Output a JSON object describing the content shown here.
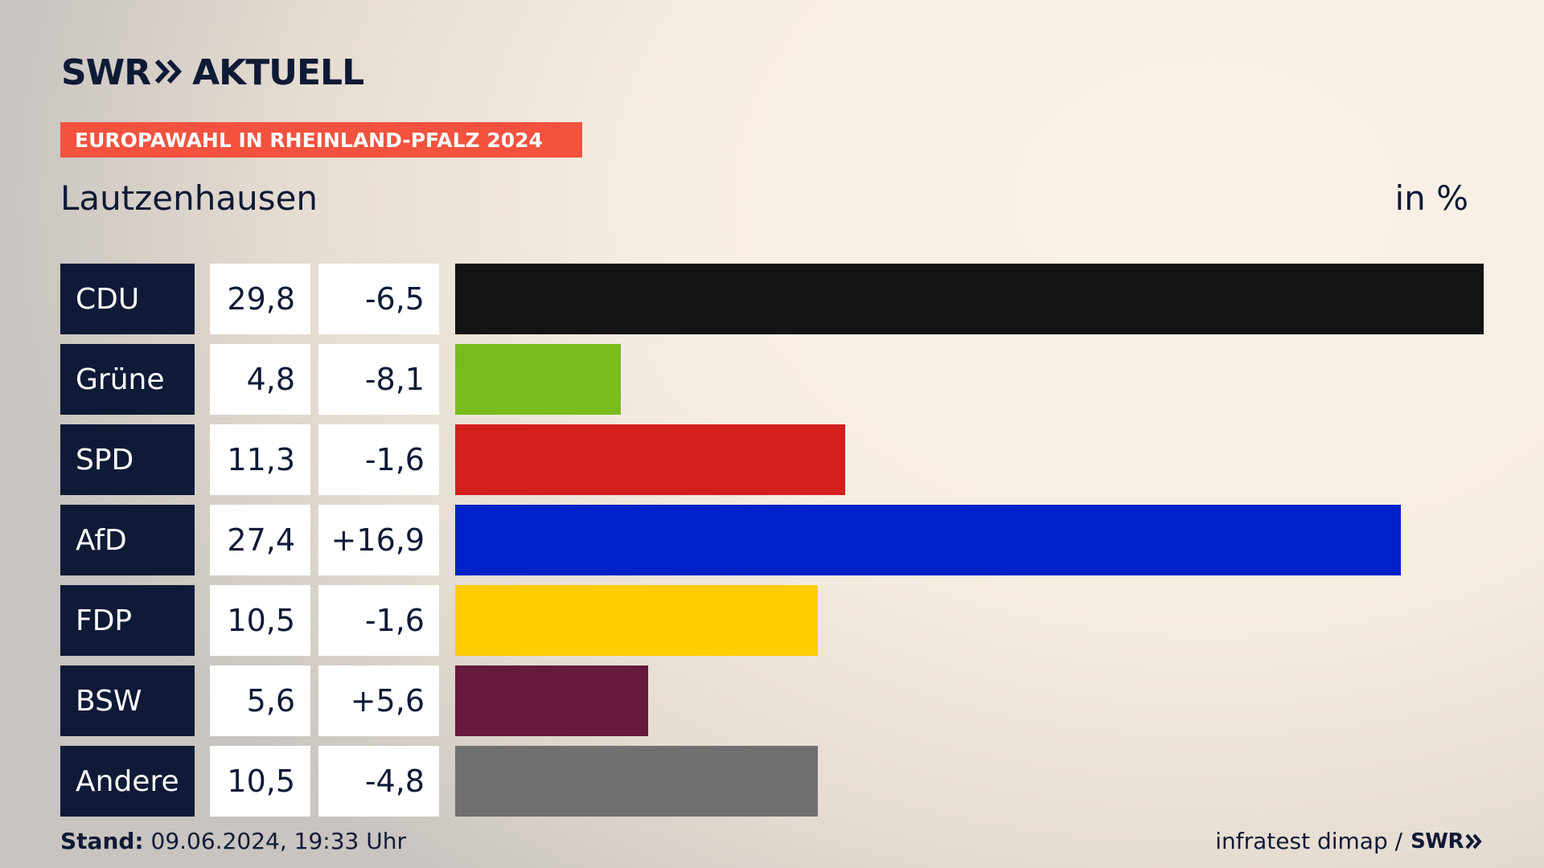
{
  "header": {
    "logo_left": "SWR",
    "logo_right": "AKTUELL",
    "banner": "EUROPAWAHL IN RHEINLAND-PFALZ 2024",
    "location": "Lautzenhausen",
    "unit": "in %"
  },
  "footer": {
    "stand_label": "Stand:",
    "stand_value": " 09.06.2024, 19:33 Uhr",
    "source": "infratest dimap /",
    "source_logo": "SWR"
  },
  "colors": {
    "navy": "#0e1a36",
    "banner": "#f2523e"
  },
  "chart_data": {
    "type": "bar",
    "categories": [
      "CDU",
      "Grüne",
      "SPD",
      "AfD",
      "FDP",
      "BSW",
      "Andere"
    ],
    "values": [
      29.8,
      4.8,
      11.3,
      27.4,
      10.5,
      5.6,
      10.5
    ],
    "value_labels": [
      "29,8",
      "4,8",
      "11,3",
      "27,4",
      "10,5",
      "5,6",
      "10,5"
    ],
    "diff_labels": [
      "-6,5",
      "-8,1",
      "-1,6",
      "+16,9",
      "-1,6",
      "+5,6",
      "-4,8"
    ],
    "colors": [
      "#141414",
      "#78bc1e",
      "#d41f1f",
      "#0021c8",
      "#ffcc00",
      "#661a3c",
      "#707070"
    ],
    "xlim": [
      0,
      29.8
    ],
    "orientation": "horizontal",
    "grid": false
  }
}
